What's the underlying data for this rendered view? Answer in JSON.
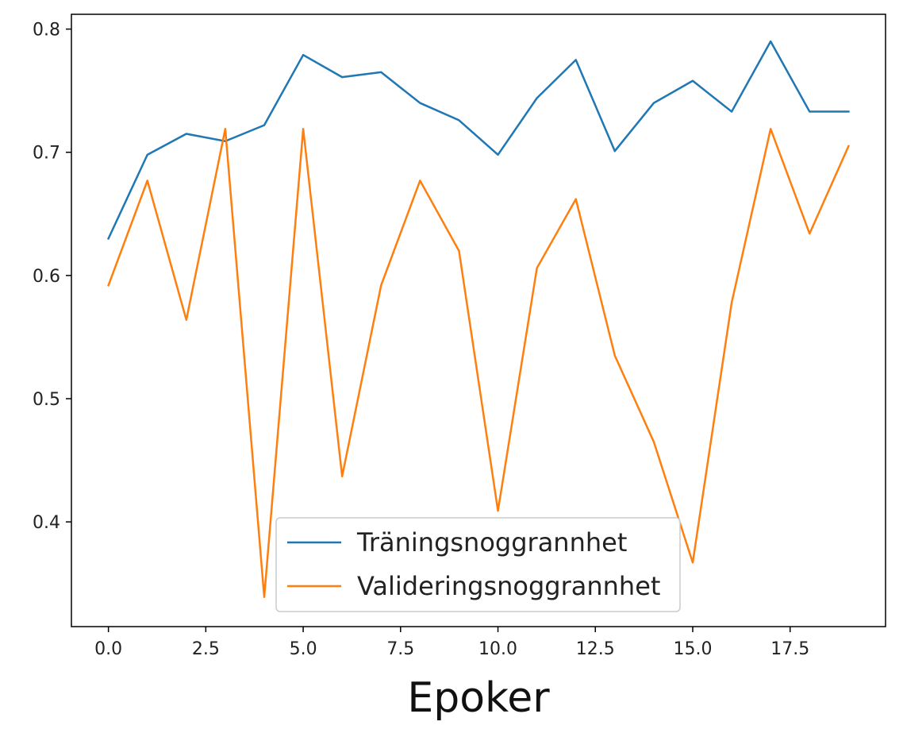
{
  "chart_data": {
    "type": "line",
    "title": "",
    "xlabel": "Epoker",
    "ylabel": "",
    "xlim": [
      -0.95,
      19.95
    ],
    "ylim": [
      0.315,
      0.812
    ],
    "xticks": [
      0.0,
      2.5,
      5.0,
      7.5,
      10.0,
      12.5,
      15.0,
      17.5
    ],
    "xtick_labels": [
      "0.0",
      "2.5",
      "5.0",
      "7.5",
      "10.0",
      "12.5",
      "15.0",
      "17.5"
    ],
    "yticks": [
      0.4,
      0.5,
      0.6,
      0.7,
      0.8
    ],
    "ytick_labels": [
      "0.4",
      "0.5",
      "0.6",
      "0.7",
      "0.8"
    ],
    "grid": false,
    "legend_position": "lower-center",
    "x": [
      0,
      1,
      2,
      3,
      4,
      5,
      6,
      7,
      8,
      9,
      10,
      11,
      12,
      13,
      14,
      15,
      16,
      17,
      18,
      19
    ],
    "series": [
      {
        "name": "Träningsnoggrannhet",
        "color": "#1f77b4",
        "values": [
          0.63,
          0.698,
          0.715,
          0.709,
          0.722,
          0.779,
          0.761,
          0.765,
          0.74,
          0.726,
          0.698,
          0.744,
          0.775,
          0.701,
          0.74,
          0.758,
          0.733,
          0.79,
          0.733,
          0.733
        ]
      },
      {
        "name": "Valideringsnoggrannhet",
        "color": "#ff7f0e",
        "values": [
          0.592,
          0.677,
          0.564,
          0.719,
          0.339,
          0.719,
          0.437,
          0.592,
          0.677,
          0.62,
          0.409,
          0.606,
          0.662,
          0.535,
          0.465,
          0.367,
          0.578,
          0.719,
          0.634,
          0.705
        ]
      }
    ]
  }
}
